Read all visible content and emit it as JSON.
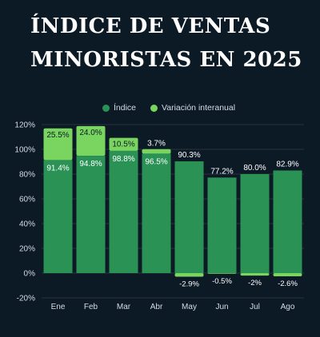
{
  "title": "ÍNDICE DE VENTAS MINORISTAS EN 2025",
  "colors": {
    "background": "#0c1a26",
    "index": "#2b9256",
    "yoy": "#79d55f",
    "grid": "#27333e",
    "text": "#d4dde6"
  },
  "chart_data": {
    "type": "bar",
    "stacked": true,
    "categories": [
      "Ene",
      "Feb",
      "Mar",
      "Abr",
      "May",
      "Jun",
      "Jul",
      "Ago"
    ],
    "series": [
      {
        "name": "Índice",
        "values": [
          91.4,
          94.8,
          98.8,
          96.5,
          90.3,
          77.2,
          80.0,
          82.9
        ],
        "labels": [
          "91.4%",
          "94.8%",
          "98.8%",
          "96.5%",
          "90.3%",
          "77.2%",
          "80.0%",
          "82.9%"
        ]
      },
      {
        "name": "Variación interanual",
        "values": [
          25.5,
          24.0,
          10.5,
          3.7,
          -2.9,
          -0.5,
          -2.0,
          -2.6
        ],
        "labels": [
          "25.5%",
          "24.0%",
          "10.5%",
          "3.7%",
          "-2.9%",
          "-0.5%",
          "-2%",
          "-2.6%"
        ]
      }
    ],
    "ylim": [
      -20,
      120
    ],
    "yticks": [
      -20,
      0,
      20,
      40,
      60,
      80,
      100,
      120
    ],
    "ytick_labels": [
      "-20%",
      "0%",
      "20%",
      "40%",
      "60%",
      "80%",
      "100%",
      "120%"
    ],
    "grid": true,
    "legend_position": "top-center",
    "xlabel": "",
    "ylabel": ""
  }
}
